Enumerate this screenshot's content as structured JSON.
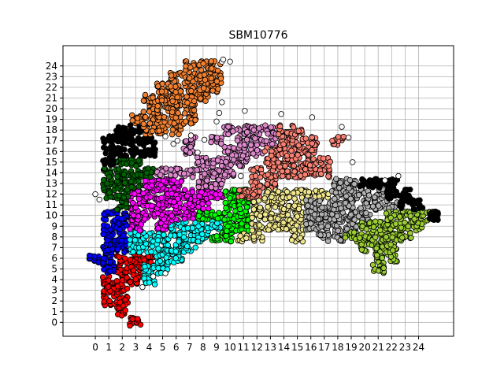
{
  "chart_data": {
    "type": "scatter",
    "title": "SBM10776",
    "xlabel": "",
    "ylabel": "",
    "xlim": [
      -2.4,
      26.6
    ],
    "ylim": [
      -1.3,
      25.9
    ],
    "xticks": [
      0,
      1,
      2,
      3,
      4,
      5,
      6,
      7,
      8,
      9,
      10,
      11,
      12,
      13,
      14,
      15,
      16,
      17,
      18,
      19,
      20,
      21,
      22,
      23,
      24
    ],
    "yticks": [
      0,
      1,
      2,
      3,
      4,
      5,
      6,
      7,
      8,
      9,
      10,
      11,
      12,
      13,
      14,
      15,
      16,
      17,
      18,
      19,
      20,
      21,
      22,
      23,
      24
    ],
    "grid": true,
    "marker": "circle-black-edge",
    "unassigned_color": "#ffffff",
    "clusters": [
      {
        "color": "#ff0000",
        "cells": [
          [
            1,
            2
          ],
          [
            2,
            1
          ],
          [
            2,
            2
          ],
          [
            3,
            0
          ],
          [
            1,
            4
          ],
          [
            2,
            3
          ],
          [
            2,
            4
          ],
          [
            2,
            5
          ],
          [
            2,
            6
          ],
          [
            3,
            5
          ],
          [
            3,
            6
          ],
          [
            4,
            6
          ],
          [
            3,
            4
          ],
          [
            1,
            3
          ]
        ]
      },
      {
        "color": "#0000ff",
        "cells": [
          [
            0,
            6
          ],
          [
            1,
            5
          ],
          [
            1,
            6
          ],
          [
            1,
            7
          ],
          [
            1,
            8
          ],
          [
            1,
            9
          ],
          [
            1,
            10
          ],
          [
            2,
            7
          ],
          [
            2,
            8
          ],
          [
            2,
            9
          ],
          [
            2,
            10
          ]
        ]
      },
      {
        "color": "#00ffff",
        "cells": [
          [
            3,
            7
          ],
          [
            3,
            8
          ],
          [
            4,
            4
          ],
          [
            4,
            5
          ],
          [
            4,
            7
          ],
          [
            4,
            8
          ],
          [
            5,
            5
          ],
          [
            5,
            6
          ],
          [
            5,
            7
          ],
          [
            5,
            8
          ],
          [
            6,
            6
          ],
          [
            6,
            7
          ],
          [
            6,
            8
          ],
          [
            6,
            9
          ],
          [
            7,
            7
          ],
          [
            7,
            8
          ],
          [
            7,
            9
          ],
          [
            8,
            8
          ],
          [
            8,
            9
          ],
          [
            9,
            9
          ]
        ]
      },
      {
        "color": "#00ff00",
        "cells": [
          [
            9,
            8
          ],
          [
            9,
            10
          ],
          [
            10,
            8
          ],
          [
            10,
            9
          ],
          [
            10,
            10
          ],
          [
            10,
            11
          ],
          [
            10,
            12
          ],
          [
            11,
            9
          ],
          [
            11,
            10
          ],
          [
            11,
            11
          ],
          [
            11,
            12
          ],
          [
            8,
            10
          ]
        ]
      },
      {
        "color": "#ff00ff",
        "cells": [
          [
            3,
            9
          ],
          [
            3,
            10
          ],
          [
            3,
            11
          ],
          [
            3,
            12
          ],
          [
            4,
            10
          ],
          [
            4,
            11
          ],
          [
            4,
            12
          ],
          [
            4,
            13
          ],
          [
            5,
            9
          ],
          [
            5,
            10
          ],
          [
            5,
            11
          ],
          [
            5,
            12
          ],
          [
            5,
            13
          ],
          [
            6,
            10
          ],
          [
            6,
            11
          ],
          [
            6,
            12
          ],
          [
            6,
            13
          ],
          [
            7,
            10
          ],
          [
            7,
            11
          ],
          [
            7,
            12
          ],
          [
            8,
            11
          ],
          [
            8,
            12
          ],
          [
            9,
            12
          ]
        ]
      },
      {
        "color": "#006400",
        "cells": [
          [
            1,
            12
          ],
          [
            1,
            13
          ],
          [
            1,
            14
          ],
          [
            2,
            11
          ],
          [
            2,
            12
          ],
          [
            2,
            13
          ],
          [
            2,
            14
          ],
          [
            2,
            15
          ],
          [
            3,
            13
          ],
          [
            3,
            14
          ],
          [
            3,
            15
          ],
          [
            4,
            14
          ]
        ]
      },
      {
        "color": "#000000",
        "cells": [
          [
            1,
            15
          ],
          [
            1,
            16
          ],
          [
            1,
            17
          ],
          [
            2,
            16
          ],
          [
            2,
            17
          ],
          [
            2,
            18
          ],
          [
            3,
            16
          ],
          [
            3,
            17
          ],
          [
            3,
            18
          ],
          [
            4,
            16
          ],
          [
            4,
            17
          ]
        ]
      },
      {
        "color": "#f08030",
        "cells": [
          [
            3,
            19
          ],
          [
            4,
            18
          ],
          [
            4,
            19
          ],
          [
            4,
            20
          ],
          [
            4,
            21
          ],
          [
            5,
            18
          ],
          [
            5,
            19
          ],
          [
            5,
            20
          ],
          [
            5,
            21
          ],
          [
            5,
            22
          ],
          [
            6,
            18
          ],
          [
            6,
            19
          ],
          [
            6,
            20
          ],
          [
            6,
            21
          ],
          [
            6,
            22
          ],
          [
            6,
            23
          ],
          [
            7,
            19
          ],
          [
            7,
            20
          ],
          [
            7,
            21
          ],
          [
            7,
            22
          ],
          [
            7,
            23
          ],
          [
            7,
            24
          ],
          [
            8,
            21
          ],
          [
            8,
            22
          ],
          [
            8,
            23
          ],
          [
            8,
            24
          ],
          [
            9,
            22
          ],
          [
            9,
            23
          ],
          [
            9,
            24
          ]
        ]
      },
      {
        "color": "#dd88cc",
        "cells": [
          [
            5,
            14
          ],
          [
            6,
            14
          ],
          [
            7,
            14
          ],
          [
            8,
            14
          ],
          [
            8,
            15
          ],
          [
            9,
            14
          ],
          [
            9,
            15
          ],
          [
            10,
            14
          ],
          [
            10,
            15
          ],
          [
            10,
            16
          ],
          [
            11,
            15
          ],
          [
            11,
            16
          ],
          [
            11,
            17
          ],
          [
            11,
            18
          ],
          [
            12,
            16
          ],
          [
            12,
            17
          ],
          [
            12,
            18
          ],
          [
            13,
            17
          ],
          [
            13,
            18
          ],
          [
            7,
            17
          ],
          [
            7,
            16
          ],
          [
            9,
            17
          ],
          [
            10,
            18
          ],
          [
            8,
            13
          ],
          [
            9,
            13
          ]
        ]
      },
      {
        "color": "#fa8072",
        "cells": [
          [
            11,
            12
          ],
          [
            12,
            13
          ],
          [
            12,
            14
          ],
          [
            13,
            13
          ],
          [
            13,
            14
          ],
          [
            13,
            15
          ],
          [
            13,
            16
          ],
          [
            14,
            14
          ],
          [
            14,
            15
          ],
          [
            14,
            16
          ],
          [
            14,
            17
          ],
          [
            15,
            14
          ],
          [
            15,
            15
          ],
          [
            15,
            16
          ],
          [
            15,
            17
          ],
          [
            16,
            14
          ],
          [
            16,
            15
          ],
          [
            16,
            16
          ],
          [
            16,
            17
          ],
          [
            17,
            14
          ],
          [
            17,
            15
          ],
          [
            12,
            12
          ],
          [
            14,
            18
          ],
          [
            15,
            18
          ],
          [
            18,
            17
          ]
        ]
      },
      {
        "color": "#f0e68c",
        "cells": [
          [
            11,
            8
          ],
          [
            12,
            8
          ],
          [
            12,
            9
          ],
          [
            12,
            10
          ],
          [
            12,
            11
          ],
          [
            13,
            9
          ],
          [
            13,
            10
          ],
          [
            13,
            11
          ],
          [
            13,
            12
          ],
          [
            14,
            9
          ],
          [
            14,
            10
          ],
          [
            14,
            11
          ],
          [
            14,
            12
          ],
          [
            15,
            8
          ],
          [
            15,
            9
          ],
          [
            15,
            10
          ],
          [
            15,
            11
          ],
          [
            15,
            12
          ],
          [
            16,
            12
          ],
          [
            17,
            12
          ]
        ]
      },
      {
        "color": "#b0b0b0",
        "cells": [
          [
            16,
            9
          ],
          [
            16,
            10
          ],
          [
            16,
            11
          ],
          [
            17,
            9
          ],
          [
            17,
            10
          ],
          [
            17,
            11
          ],
          [
            18,
            8
          ],
          [
            18,
            9
          ],
          [
            18,
            10
          ],
          [
            18,
            11
          ],
          [
            18,
            12
          ],
          [
            18,
            13
          ],
          [
            19,
            9
          ],
          [
            19,
            10
          ],
          [
            19,
            11
          ],
          [
            19,
            12
          ],
          [
            20,
            10
          ],
          [
            20,
            11
          ],
          [
            20,
            12
          ],
          [
            21,
            11
          ],
          [
            21,
            12
          ],
          [
            22,
            11
          ],
          [
            17,
            8
          ],
          [
            19,
            13
          ]
        ]
      },
      {
        "color": "#9acd32",
        "cells": [
          [
            19,
            8
          ],
          [
            20,
            7
          ],
          [
            20,
            8
          ],
          [
            20,
            9
          ],
          [
            21,
            6
          ],
          [
            21,
            7
          ],
          [
            21,
            8
          ],
          [
            21,
            9
          ],
          [
            22,
            6
          ],
          [
            22,
            7
          ],
          [
            22,
            8
          ],
          [
            22,
            9
          ],
          [
            22,
            10
          ],
          [
            23,
            8
          ],
          [
            23,
            9
          ],
          [
            23,
            10
          ],
          [
            24,
            9
          ],
          [
            24,
            10
          ],
          [
            25,
            10
          ],
          [
            21,
            5
          ]
        ]
      },
      {
        "color": "#000000",
        "cells": [
          [
            20,
            13
          ],
          [
            21,
            13
          ],
          [
            22,
            12
          ],
          [
            23,
            11
          ],
          [
            23,
            12
          ],
          [
            24,
            11
          ],
          [
            25,
            10
          ],
          [
            22,
            13
          ]
        ]
      }
    ],
    "outliers": [
      [
        0,
        12
      ],
      [
        0.3,
        11.5
      ],
      [
        3.5,
        3.3
      ],
      [
        4.3,
        4.3
      ],
      [
        5.2,
        4.6
      ],
      [
        9.4,
        20.6
      ],
      [
        9.2,
        19.6
      ],
      [
        9.0,
        18.8
      ],
      [
        11.1,
        19.8
      ],
      [
        13.8,
        19.5
      ],
      [
        16.1,
        19.2
      ],
      [
        18.3,
        18.3
      ],
      [
        18.8,
        17.3
      ],
      [
        19.1,
        15.0
      ],
      [
        21.5,
        13.3
      ],
      [
        22.5,
        13.7
      ],
      [
        9.4,
        24.4
      ],
      [
        9.5,
        24.6
      ],
      [
        10,
        24.4
      ],
      [
        7.1,
        17.5
      ],
      [
        8.1,
        17.1
      ],
      [
        5.2,
        17.4
      ],
      [
        5.8,
        16.7
      ],
      [
        6.1,
        17.0
      ],
      [
        7.6,
        15.9
      ],
      [
        10.8,
        13.7
      ]
    ]
  }
}
